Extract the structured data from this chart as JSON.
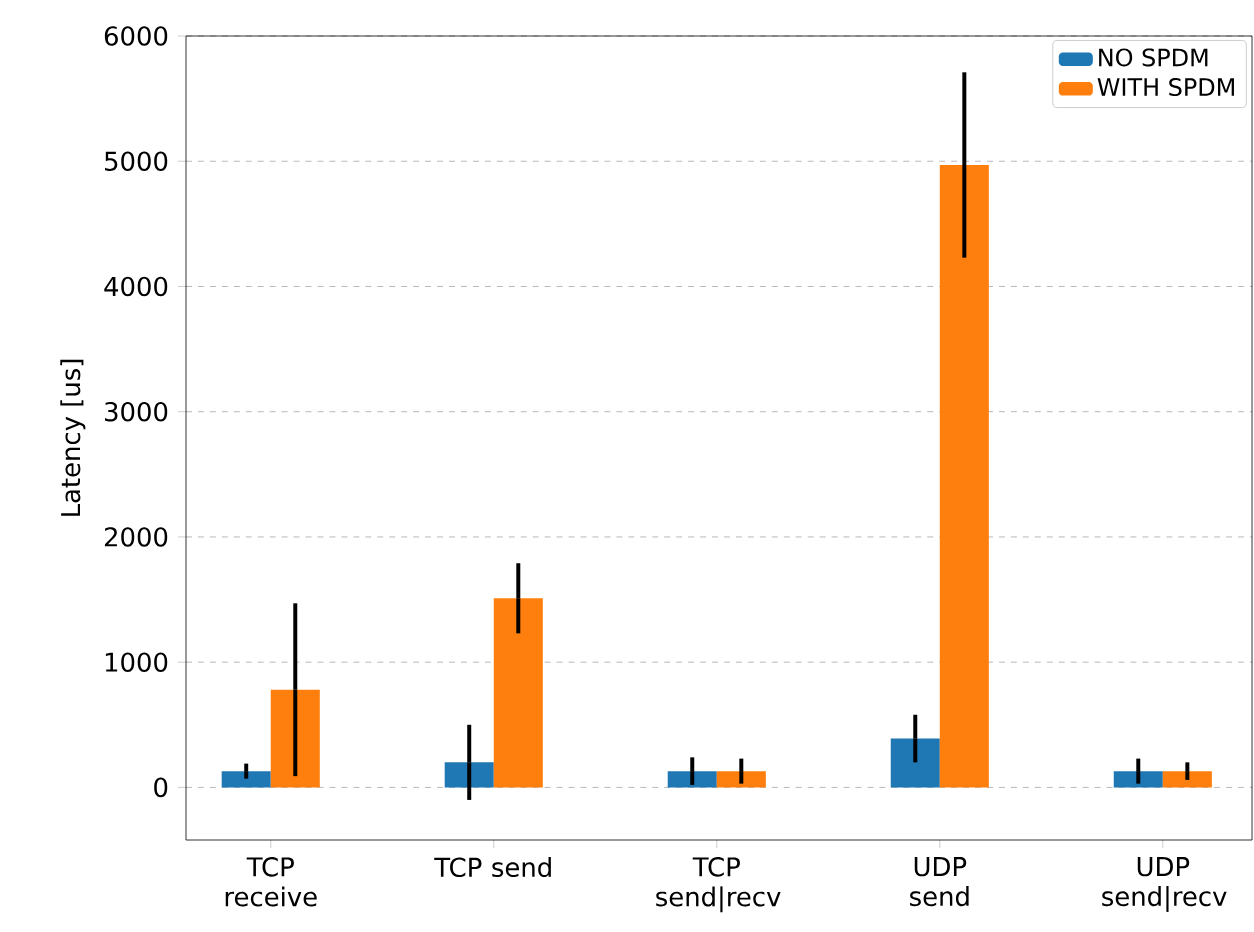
{
  "chart_data": {
    "type": "bar",
    "ylabel": "Latency [us]",
    "categories": [
      "TCP receive",
      "TCP send",
      "TCP send|recv",
      "UDP send",
      "UDP send|recv"
    ],
    "series": [
      {
        "name": "NO SPDM",
        "color": "#1f77b4",
        "values": [
          130,
          200,
          130,
          390,
          130
        ],
        "errors": [
          60,
          300,
          110,
          190,
          100
        ]
      },
      {
        "name": "WITH SPDM",
        "color": "#ff7f0e",
        "values": [
          780,
          1510,
          130,
          4970,
          130
        ],
        "errors": [
          690,
          280,
          100,
          740,
          70
        ]
      }
    ],
    "ylim": [
      -420,
      6000
    ],
    "yticks": [
      0,
      1000,
      2000,
      3000,
      4000,
      5000,
      6000
    ],
    "grid": "y",
    "legend": "top right"
  }
}
